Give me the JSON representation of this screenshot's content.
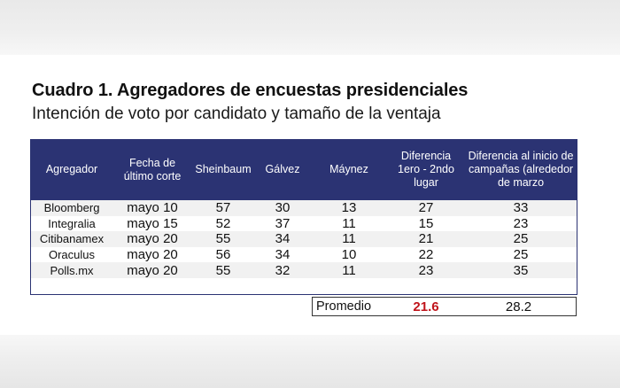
{
  "title": "Cuadro 1. Agregadores de encuestas presidenciales",
  "subtitle": "Intención de voto por candidato y tamaño de la ventaja",
  "columns": [
    "Agregador",
    "Fecha de último corte",
    "Sheinbaum",
    "Gálvez",
    "Máynez",
    "Diferencia 1ero - 2ndo lugar",
    "Diferencia al inicio de campañas (alrededor de marzo"
  ],
  "rows": [
    [
      "Bloomberg",
      "mayo 10",
      "57",
      "30",
      "13",
      "27",
      "33"
    ],
    [
      "Integralia",
      "mayo 15",
      "52",
      "37",
      "11",
      "15",
      "23"
    ],
    [
      "Citibanamex",
      "mayo 20",
      "55",
      "34",
      "11",
      "21",
      "25"
    ],
    [
      "Oraculus",
      "mayo 20",
      "56",
      "34",
      "10",
      "22",
      "25"
    ],
    [
      "Polls.mx",
      "mayo 20",
      "55",
      "32",
      "11",
      "23",
      "35"
    ]
  ],
  "summary": {
    "label": "Promedio",
    "diff_lead": "21.6",
    "diff_start": "28.2"
  },
  "colors": {
    "header_bg": "#2b3373",
    "header_text": "#ffffff",
    "highlight": "#c0141b",
    "stripe": "#f1f1f1"
  }
}
